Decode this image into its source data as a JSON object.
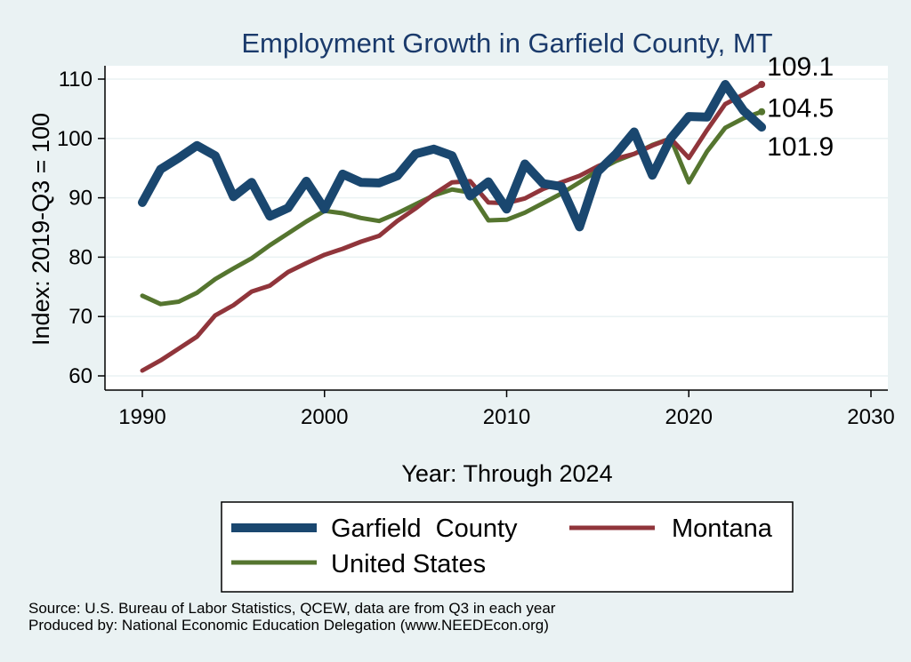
{
  "chart_data": {
    "type": "line",
    "title": "Employment Growth in Garfield County, MT",
    "xlabel": "Year: Through 2024",
    "ylabel": "Index: 2019-Q3 = 100",
    "xlim": [
      1990,
      2030
    ],
    "ylim": [
      60,
      110
    ],
    "xticks": [
      1990,
      2000,
      2010,
      2020,
      2030
    ],
    "yticks": [
      60,
      70,
      80,
      90,
      100,
      110
    ],
    "grid": true,
    "legend_position": "bottom",
    "x": [
      1990,
      1991,
      1992,
      1993,
      1994,
      1995,
      1996,
      1997,
      1998,
      1999,
      2000,
      2001,
      2002,
      2003,
      2004,
      2005,
      2006,
      2007,
      2008,
      2009,
      2010,
      2011,
      2012,
      2013,
      2014,
      2015,
      2016,
      2017,
      2018,
      2019,
      2020,
      2021,
      2022,
      2023,
      2024
    ],
    "series": [
      {
        "name": "Garfield  County",
        "color": "#1a476f",
        "values": [
          89.2,
          94.8,
          96.7,
          98.8,
          97.1,
          90.2,
          92.6,
          86.9,
          88.3,
          92.8,
          88.1,
          94.0,
          92.6,
          92.5,
          93.7,
          97.4,
          98.2,
          97.1,
          90.3,
          92.7,
          88.1,
          95.7,
          92.4,
          91.9,
          85.1,
          94.4,
          97.4,
          101.1,
          93.8,
          100.0,
          103.7,
          103.6,
          109.1,
          104.7,
          101.9
        ],
        "end_label": "101.9"
      },
      {
        "name": "Montana",
        "color": "#90353b",
        "values": [
          60.9,
          62.6,
          64.6,
          66.6,
          70.2,
          71.9,
          74.2,
          75.2,
          77.5,
          79.0,
          80.4,
          81.4,
          82.6,
          83.6,
          86.1,
          88.2,
          90.6,
          92.6,
          92.8,
          89.2,
          89.1,
          89.9,
          91.5,
          92.6,
          93.7,
          95.3,
          96.6,
          97.4,
          98.8,
          100.0,
          96.7,
          101.4,
          105.8,
          107.4,
          109.1
        ],
        "end_label": "109.1"
      },
      {
        "name": "United States",
        "color": "#55752f",
        "values": [
          73.5,
          72.1,
          72.5,
          74.0,
          76.3,
          78.1,
          79.8,
          82.0,
          84.0,
          86.0,
          87.8,
          87.4,
          86.6,
          86.1,
          87.4,
          88.9,
          90.4,
          91.4,
          90.9,
          86.2,
          86.3,
          87.5,
          89.1,
          90.7,
          92.6,
          94.6,
          96.2,
          97.4,
          98.9,
          100.0,
          92.6,
          97.8,
          101.8,
          103.4,
          104.5
        ],
        "end_label": "104.5"
      }
    ]
  },
  "notes": {
    "source": "Source: U.S. Bureau of Labor Statistics, QCEW, data are from Q3 in each year",
    "produced_by": "Produced by: National Economic Education Delegation (www.NEEDEcon.org)"
  }
}
